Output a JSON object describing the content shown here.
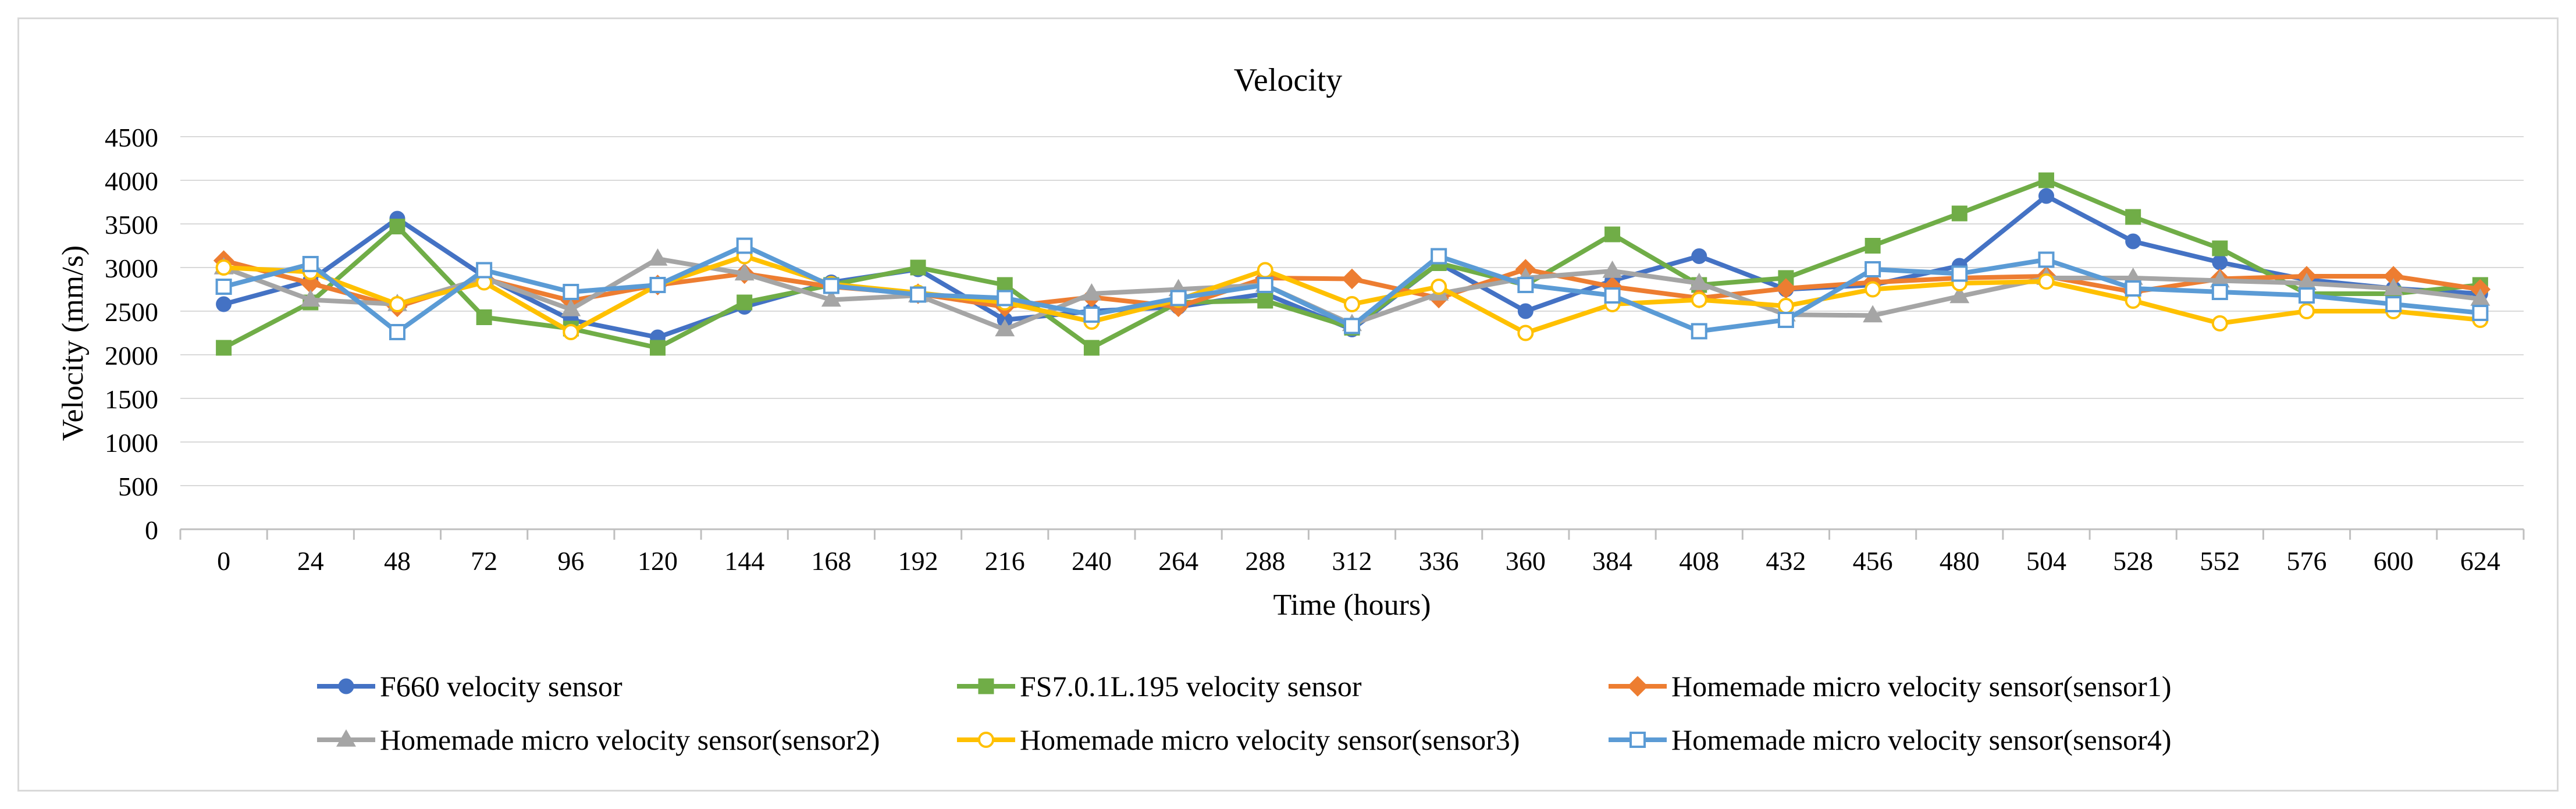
{
  "chart_data": {
    "type": "line",
    "title": "Velocity",
    "xlabel": "Time (hours)",
    "ylabel": "Velocity (mm/s)",
    "ylim": [
      0,
      4500
    ],
    "yticks": [
      "0",
      "500",
      "1000",
      "1500",
      "2000",
      "2500",
      "3000",
      "3500",
      "4000",
      "4500"
    ],
    "grid": true,
    "legend_position": "bottom",
    "categories": [
      "0",
      "24",
      "48",
      "72",
      "96",
      "120",
      "144",
      "168",
      "192",
      "216",
      "240",
      "264",
      "288",
      "312",
      "336",
      "360",
      "384",
      "408",
      "432",
      "456",
      "480",
      "504",
      "528",
      "552",
      "576",
      "600",
      "624"
    ],
    "series": [
      {
        "name": "F660 velocity sensor",
        "color": "#4472C4",
        "marker": "circle-filled",
        "values": [
          2580,
          2850,
          3560,
          2900,
          2400,
          2200,
          2550,
          2830,
          2980,
          2400,
          2500,
          2550,
          2700,
          2290,
          3050,
          2500,
          2850,
          3130,
          2750,
          2800,
          3020,
          3820,
          3300,
          3060,
          2860,
          2760,
          2700
        ]
      },
      {
        "name": "FS7.0.1L.195 velocity sensor",
        "color": "#70AD47",
        "marker": "square-filled",
        "values": [
          2080,
          2600,
          3470,
          2430,
          2300,
          2080,
          2600,
          2800,
          3000,
          2800,
          2080,
          2600,
          2620,
          2310,
          3050,
          2800,
          3380,
          2800,
          2880,
          3250,
          3620,
          4000,
          3580,
          3220,
          2700,
          2700,
          2800
        ]
      },
      {
        "name": "Homemade micro velocity sensor(sensor1)",
        "color": "#ED7D31",
        "marker": "diamond-filled",
        "values": [
          3080,
          2820,
          2550,
          2870,
          2620,
          2800,
          2930,
          2780,
          2700,
          2550,
          2660,
          2550,
          2880,
          2870,
          2650,
          2980,
          2780,
          2650,
          2760,
          2830,
          2880,
          2900,
          2720,
          2870,
          2900,
          2900,
          2750
        ]
      },
      {
        "name": "Homemade micro velocity sensor(sensor2)",
        "color": "#A5A5A5",
        "marker": "triangle-filled",
        "values": [
          3000,
          2630,
          2580,
          2880,
          2520,
          3100,
          2930,
          2630,
          2680,
          2290,
          2700,
          2750,
          2800,
          2350,
          2700,
          2880,
          2960,
          2820,
          2460,
          2450,
          2670,
          2880,
          2880,
          2850,
          2820,
          2760,
          2640
        ]
      },
      {
        "name": "Homemade micro velocity sensor(sensor3)",
        "color": "#FFC000",
        "marker": "circle-open",
        "values": [
          3000,
          2950,
          2580,
          2830,
          2260,
          2800,
          3130,
          2810,
          2710,
          2600,
          2380,
          2630,
          2970,
          2580,
          2780,
          2250,
          2580,
          2630,
          2560,
          2750,
          2820,
          2840,
          2620,
          2360,
          2500,
          2500,
          2400
        ]
      },
      {
        "name": "Homemade micro velocity sensor(sensor4)",
        "color": "#5B9BD5",
        "marker": "square-open",
        "values": [
          2780,
          3040,
          2260,
          2970,
          2720,
          2800,
          3250,
          2790,
          2690,
          2650,
          2460,
          2650,
          2800,
          2330,
          3130,
          2800,
          2680,
          2270,
          2400,
          2980,
          2930,
          3090,
          2760,
          2720,
          2680,
          2580,
          2480
        ]
      }
    ]
  }
}
